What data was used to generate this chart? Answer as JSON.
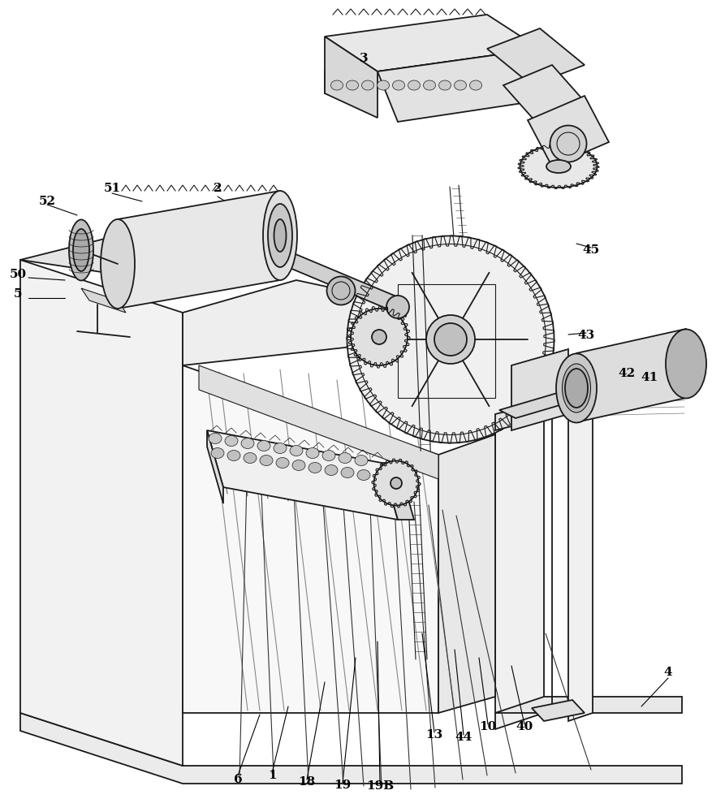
{
  "bg_color": "#ffffff",
  "lc": "#1a1a1a",
  "figsize": [
    8.77,
    10.0
  ],
  "dpi": 100,
  "labels": [
    [
      "1",
      335,
      955
    ],
    [
      "2",
      268,
      232
    ],
    [
      "3",
      448,
      72
    ],
    [
      "4",
      823,
      828
    ],
    [
      "5",
      22,
      362
    ],
    [
      "6",
      293,
      960
    ],
    [
      "10",
      601,
      895
    ],
    [
      "13",
      535,
      905
    ],
    [
      "18",
      378,
      963
    ],
    [
      "19",
      422,
      967
    ],
    [
      "19B",
      468,
      968
    ],
    [
      "40",
      646,
      895
    ],
    [
      "41",
      800,
      465
    ],
    [
      "42",
      772,
      460
    ],
    [
      "43",
      722,
      413
    ],
    [
      "44",
      571,
      908
    ],
    [
      "45",
      728,
      308
    ],
    [
      "50",
      22,
      338
    ],
    [
      "51",
      138,
      232
    ],
    [
      "52",
      58,
      248
    ]
  ],
  "leader_lines": [
    [
      268,
      242,
      300,
      262
    ],
    [
      448,
      80,
      510,
      110
    ],
    [
      823,
      835,
      790,
      870
    ],
    [
      35,
      342,
      80,
      345
    ],
    [
      35,
      367,
      80,
      367
    ],
    [
      293,
      955,
      320,
      880
    ],
    [
      335,
      952,
      355,
      870
    ],
    [
      601,
      892,
      590,
      810
    ],
    [
      535,
      902,
      520,
      780
    ],
    [
      378,
      960,
      400,
      840
    ],
    [
      422,
      964,
      438,
      810
    ],
    [
      468,
      965,
      465,
      790
    ],
    [
      646,
      892,
      630,
      820
    ],
    [
      800,
      462,
      775,
      460
    ],
    [
      772,
      457,
      755,
      458
    ],
    [
      722,
      410,
      700,
      412
    ],
    [
      571,
      905,
      560,
      800
    ],
    [
      728,
      305,
      710,
      300
    ],
    [
      138,
      238,
      175,
      248
    ],
    [
      58,
      252,
      95,
      265
    ]
  ]
}
